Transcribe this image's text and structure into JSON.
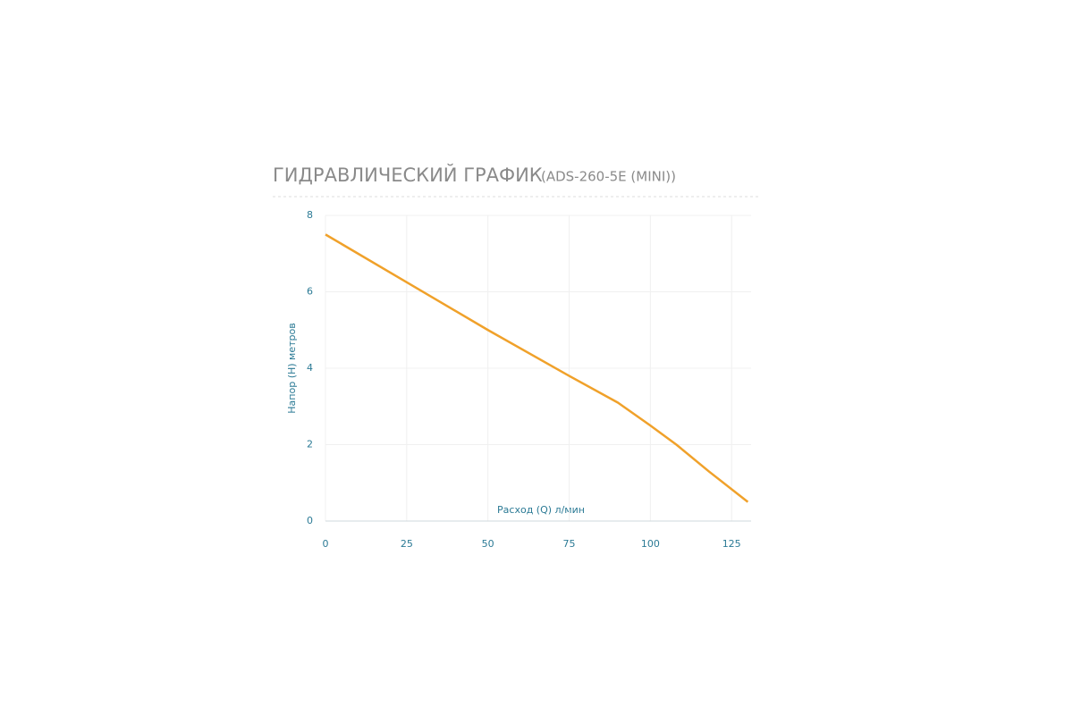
{
  "chart_data": {
    "type": "line",
    "title": "ГИДРАВЛИЧЕСКИЙ ГРАФИК",
    "subtitle": "(ADS-260-5E (MINI))",
    "x_label": "Расход (Q) л/мин",
    "y_label": "Напор (H) метров",
    "x": [
      0,
      25,
      50,
      75,
      90,
      100,
      108,
      118,
      130
    ],
    "series": [
      {
        "name": "ADS-260-5E (MINI)",
        "color": "#f0a12a",
        "values": [
          7.5,
          6.25,
          5.0,
          3.8,
          3.1,
          2.5,
          2.0,
          1.3,
          0.5
        ]
      }
    ],
    "xlim": [
      0,
      131
    ],
    "xticks": [
      0,
      25,
      50,
      75,
      100,
      125
    ],
    "ylim": [
      0,
      8
    ],
    "yticks": [
      0,
      2,
      4,
      6,
      8
    ],
    "grid": true
  }
}
